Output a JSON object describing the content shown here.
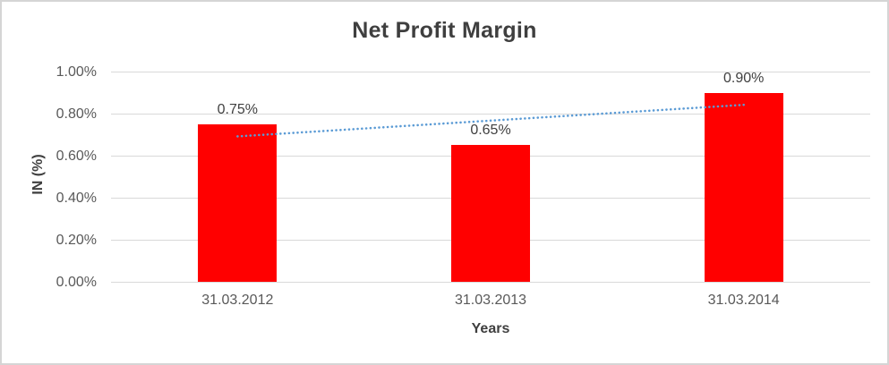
{
  "canvas": {
    "background": "#FFFFFF",
    "border_color": "#D5D5D5"
  },
  "chart_data": {
    "type": "bar",
    "title": "Net Profit Margin",
    "categories": [
      "31.03.2012",
      "31.03.2013",
      "31.03.2014"
    ],
    "series": [
      {
        "name": "Net Profit Margin",
        "values": [
          0.75,
          0.65,
          0.9
        ]
      }
    ],
    "data_labels": [
      "0.75%",
      "0.65%",
      "0.90%"
    ],
    "xlabel": "Years",
    "ylabel": "IN (%)",
    "ylim": [
      0,
      1.0
    ],
    "ytick_values": [
      0,
      0.2,
      0.4,
      0.6,
      0.8,
      1.0
    ],
    "ytick_labels": [
      "0.00%",
      "0.20%",
      "0.40%",
      "0.60%",
      "0.80%",
      "1.00%"
    ],
    "grid": true,
    "legend": "none",
    "bar_color": "#FF0000",
    "gridline_color": "#D9D9D9",
    "trendline": {
      "type": "linear",
      "style": "dotted",
      "color": "#5B9BD5"
    }
  }
}
